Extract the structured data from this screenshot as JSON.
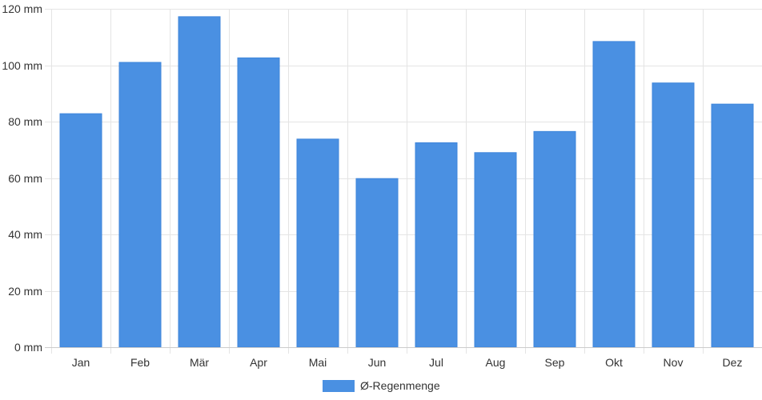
{
  "chart_data": {
    "type": "bar",
    "categories": [
      "Jan",
      "Feb",
      "Mär",
      "Apr",
      "Mai",
      "Jun",
      "Jul",
      "Aug",
      "Sep",
      "Okt",
      "Nov",
      "Dez"
    ],
    "series": [
      {
        "name": "Ø-Regenmenge",
        "values": [
          82.8,
          101.0,
          117.2,
          102.6,
          73.8,
          59.8,
          72.5,
          69.0,
          76.5,
          108.4,
          93.7,
          86.2
        ],
        "color": "#4a90e2"
      }
    ],
    "y_unit": "mm",
    "ylim": [
      0,
      120
    ],
    "yticks": [
      0,
      20,
      40,
      60,
      80,
      100,
      120
    ],
    "ytick_labels": [
      "0 mm",
      "20 mm",
      "40 mm",
      "60 mm",
      "80 mm",
      "100 mm",
      "120 mm"
    ],
    "grid": true,
    "legend_position": "bottom-center",
    "title": "",
    "xlabel": "",
    "ylabel": ""
  }
}
